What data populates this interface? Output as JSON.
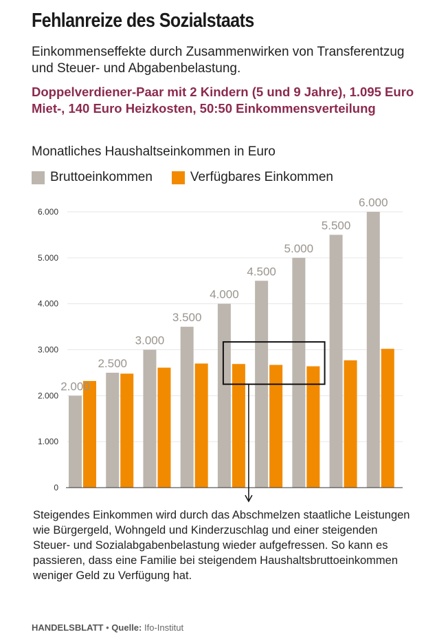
{
  "title": "Fehlanreize des Sozialstaats",
  "subtitle": "Einkommenseffekte durch Zusammenwirken von Transferentzug und Steuer- und Abgabenbelastung.",
  "highlight": "Doppelverdiener-Paar mit 2 Kindern (5 und 9 Jahre), 1.095 Euro Miet-, 140 Euro Heizkosten, 50:50 Einkommensverteilung",
  "measure_label": "Monatliches Haushaltseinkommen in Euro",
  "annotation": "Steigendes Einkommen wird durch das Abschmelzen staatliche Leistungen wie Bürgergeld, Wohngeld und Kinderzuschlag und einer steigenden Steuer- und Sozialabgabenbelastung wieder aufgefressen. So kann es passieren, dass eine Familie bei steigendem Haushaltsbruttoeinkommen weniger Geld zu Verfügung hat.",
  "footer": {
    "brand": "HANDELSBLATT",
    "separator": "•",
    "source_label": "Quelle:",
    "source": "Ifo-Institut"
  },
  "colors": {
    "gross": "#bdb6ae",
    "net": "#f28a00",
    "highlight": "#8b2a4e",
    "axis": "#222222"
  },
  "chart_data": {
    "type": "bar",
    "categories": [
      "2.000",
      "2.500",
      "3.000",
      "3.500",
      "4.000",
      "4.500",
      "5.000",
      "5.500",
      "6.000"
    ],
    "series": [
      {
        "name": "Bruttoeinkommen",
        "values": [
          2000,
          2500,
          3000,
          3500,
          4000,
          4500,
          5000,
          5500,
          6000
        ]
      },
      {
        "name": "Verfügbares Einkommen",
        "values": [
          2320,
          2480,
          2610,
          2700,
          2690,
          2670,
          2640,
          2770,
          3020
        ]
      }
    ],
    "data_labels": [
      "2.000",
      "2.500",
      "3.000",
      "3.500",
      "4.000",
      "4.500",
      "5.000",
      "5.500",
      "6.000"
    ],
    "y_ticks": [
      {
        "value": 0,
        "label": "0"
      },
      {
        "value": 1000,
        "label": "1.000"
      },
      {
        "value": 2000,
        "label": "2.000"
      },
      {
        "value": 3000,
        "label": "3.000"
      },
      {
        "value": 4000,
        "label": "4.000"
      },
      {
        "value": 5000,
        "label": "5.000"
      },
      {
        "value": 6000,
        "label": "6.000"
      }
    ],
    "ylim": [
      0,
      6000
    ],
    "grid": true,
    "legend": "top-left",
    "highlight_range": {
      "from_category": 4,
      "to_category": 6,
      "y_from": 2250,
      "y_to": 3170
    }
  }
}
